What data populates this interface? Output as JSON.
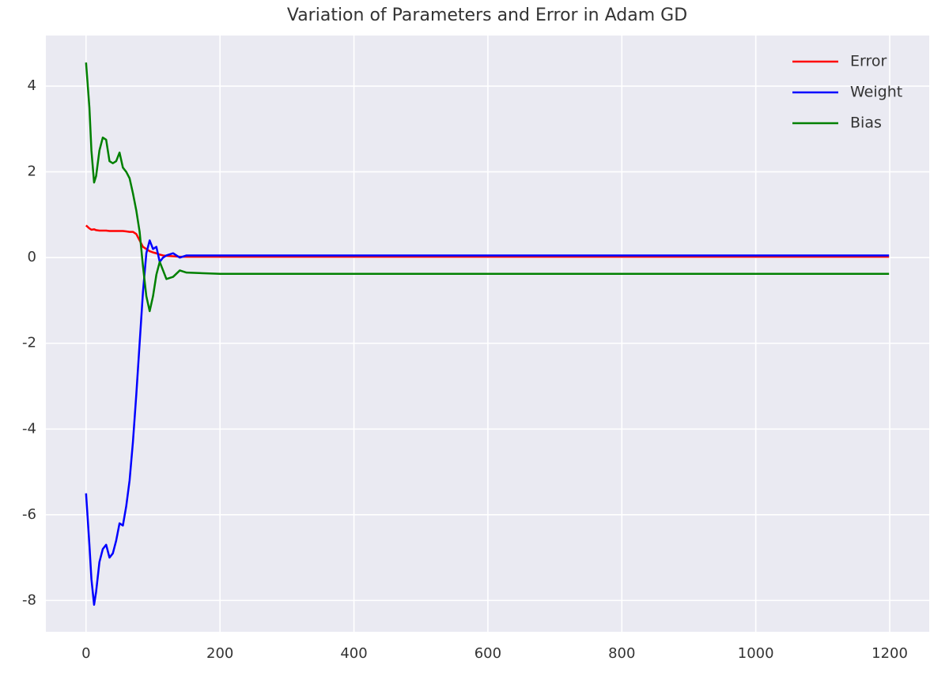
{
  "chart_data": {
    "type": "line",
    "title": "Variation of Parameters and Error in Adam GD",
    "x": [
      0,
      5,
      8,
      12,
      15,
      20,
      25,
      30,
      35,
      40,
      45,
      50,
      55,
      60,
      65,
      70,
      75,
      80,
      85,
      90,
      95,
      100,
      105,
      110,
      115,
      120,
      130,
      140,
      150,
      200,
      400,
      600,
      800,
      1000,
      1199
    ],
    "series": [
      {
        "name": "Error",
        "color": "#ff0000",
        "values": [
          0.75,
          0.68,
          0.65,
          0.66,
          0.64,
          0.63,
          0.63,
          0.63,
          0.62,
          0.62,
          0.62,
          0.62,
          0.62,
          0.61,
          0.6,
          0.6,
          0.55,
          0.4,
          0.25,
          0.2,
          0.15,
          0.12,
          0.1,
          0.07,
          0.05,
          0.04,
          0.03,
          0.02,
          0.02,
          0.02,
          0.02,
          0.02,
          0.02,
          0.02,
          0.02
        ]
      },
      {
        "name": "Weight",
        "color": "#0000ff",
        "values": [
          -5.5,
          -6.7,
          -7.5,
          -8.1,
          -7.8,
          -7.1,
          -6.8,
          -6.7,
          -7.0,
          -6.9,
          -6.6,
          -6.2,
          -6.25,
          -5.8,
          -5.2,
          -4.3,
          -3.2,
          -2.0,
          -0.8,
          0.1,
          0.4,
          0.2,
          0.25,
          -0.1,
          0.0,
          0.05,
          0.1,
          0.0,
          0.05,
          0.05,
          0.05,
          0.05,
          0.05,
          0.05,
          0.05
        ]
      },
      {
        "name": "Bias",
        "color": "#008000",
        "values": [
          4.55,
          3.5,
          2.5,
          1.75,
          1.9,
          2.5,
          2.8,
          2.75,
          2.25,
          2.2,
          2.25,
          2.45,
          2.1,
          2.0,
          1.85,
          1.5,
          1.1,
          0.6,
          -0.2,
          -0.9,
          -1.25,
          -0.9,
          -0.4,
          -0.1,
          -0.3,
          -0.5,
          -0.45,
          -0.3,
          -0.35,
          -0.38,
          -0.38,
          -0.38,
          -0.38,
          -0.38,
          -0.38
        ]
      }
    ],
    "xlim": [
      -60,
      1259
    ],
    "ylim": [
      -8.73,
      5.18
    ],
    "xticks": [
      0,
      200,
      400,
      600,
      800,
      1000,
      1200
    ],
    "yticks": [
      -8,
      -6,
      -4,
      -2,
      0,
      2,
      4
    ],
    "grid": true,
    "legend": "upper right"
  }
}
